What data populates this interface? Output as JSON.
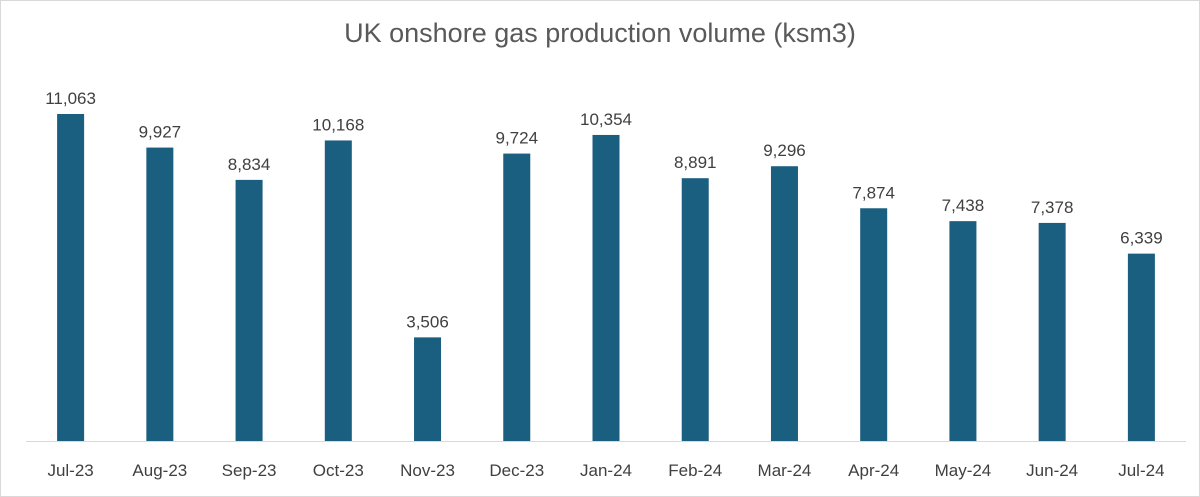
{
  "chart_data": {
    "type": "bar",
    "title": "UK onshore gas production volume (ksm3)",
    "xlabel": "",
    "ylabel": "",
    "categories": [
      "Jul-23",
      "Aug-23",
      "Sep-23",
      "Oct-23",
      "Nov-23",
      "Dec-23",
      "Jan-24",
      "Feb-24",
      "Mar-24",
      "Apr-24",
      "May-24",
      "Jun-24",
      "Jul-24"
    ],
    "values": [
      11063,
      9927,
      8834,
      10168,
      3506,
      9724,
      10354,
      8891,
      9296,
      7874,
      7438,
      7378,
      6339
    ],
    "value_labels": [
      "11,063",
      "9,927",
      "8,834",
      "10,168",
      "3,506",
      "9,724",
      "10,354",
      "8,891",
      "9,296",
      "7,874",
      "7,438",
      "7,378",
      "6,339"
    ],
    "ylim": [
      0,
      11063
    ],
    "grid": false,
    "legend": "none",
    "bar_color": "#1a5e80",
    "axis_color": "#d9d9d9"
  }
}
